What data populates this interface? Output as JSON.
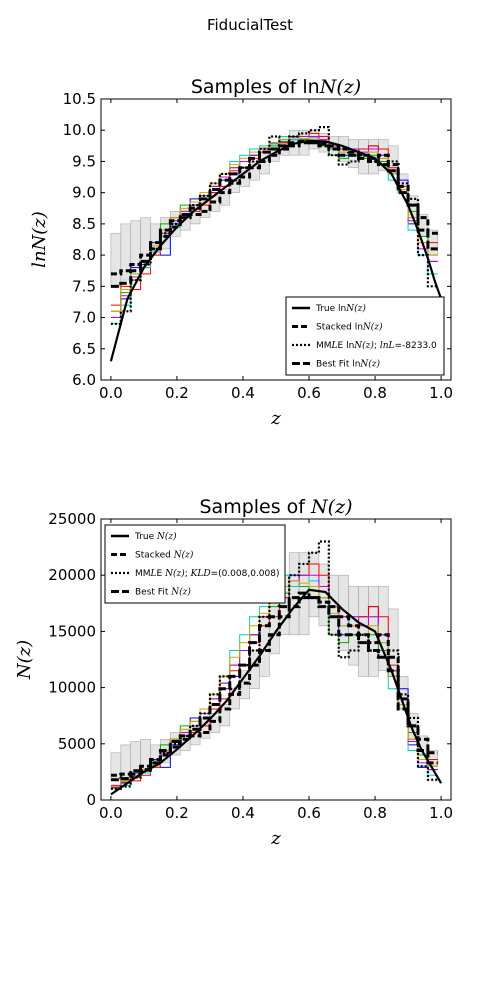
{
  "suptitle": "FiducialTest",
  "chart_data": [
    {
      "type": "line",
      "title": "Samples of lnN(z)",
      "xlabel": "z",
      "ylabel": "lnN(z)",
      "xlim": [
        -0.03,
        1.03
      ],
      "ylim": [
        6.0,
        10.5
      ],
      "xticks": [
        "0.0",
        "0.2",
        "0.4",
        "0.6",
        "0.8",
        "1.0"
      ],
      "yticks": [
        "6.0",
        "6.5",
        "7.0",
        "7.5",
        "8.0",
        "8.5",
        "9.0",
        "9.5",
        "10.0",
        "10.5"
      ],
      "legend_position": "lower-right",
      "legend": [
        "True lnN(z)",
        "Stacked lnN(z)",
        "MMLE lnN(z); lnL=-8233.0",
        "Best Fit lnN(z)"
      ],
      "bin_edges": [
        0.0,
        0.03,
        0.06,
        0.09,
        0.12,
        0.15,
        0.18,
        0.21,
        0.24,
        0.27,
        0.3,
        0.33,
        0.36,
        0.39,
        0.42,
        0.45,
        0.48,
        0.51,
        0.54,
        0.57,
        0.6,
        0.63,
        0.66,
        0.69,
        0.72,
        0.75,
        0.78,
        0.81,
        0.84,
        0.87,
        0.9,
        0.93,
        0.96,
        0.99
      ],
      "band_low": [
        7.5,
        7.6,
        7.8,
        7.9,
        8.0,
        8.1,
        8.3,
        8.4,
        8.5,
        8.6,
        8.7,
        8.8,
        9.0,
        9.1,
        9.2,
        9.3,
        9.5,
        9.6,
        9.6,
        9.6,
        9.7,
        9.65,
        9.6,
        9.5,
        9.4,
        9.3,
        9.3,
        9.35,
        9.3,
        9.0,
        8.6,
        8.3,
        8.0
      ],
      "band_high": [
        8.35,
        8.5,
        8.55,
        8.6,
        8.5,
        8.6,
        8.7,
        8.75,
        8.8,
        8.9,
        8.95,
        9.05,
        9.2,
        9.35,
        9.5,
        9.7,
        9.8,
        9.9,
        10.0,
        10.0,
        10.0,
        9.95,
        9.9,
        9.9,
        9.85,
        9.85,
        9.85,
        9.85,
        9.75,
        9.3,
        8.95,
        8.65,
        8.4
      ],
      "truth": {
        "name": "True lnN(z)",
        "x": [
          0.0,
          0.05,
          0.1,
          0.15,
          0.2,
          0.25,
          0.3,
          0.35,
          0.4,
          0.45,
          0.5,
          0.55,
          0.6,
          0.65,
          0.7,
          0.75,
          0.8,
          0.85,
          0.9,
          0.93,
          0.96,
          0.98,
          1.0
        ],
        "y": [
          6.3,
          7.3,
          7.8,
          8.15,
          8.45,
          8.7,
          8.9,
          9.1,
          9.3,
          9.5,
          9.65,
          9.78,
          9.83,
          9.82,
          9.75,
          9.65,
          9.55,
          9.3,
          8.8,
          8.4,
          7.95,
          7.6,
          7.3
        ]
      },
      "steps": [
        {
          "name": "Stacked lnN(z)",
          "values": [
            7.7,
            7.75,
            7.85,
            8.0,
            8.1,
            8.3,
            8.45,
            8.6,
            8.65,
            8.7,
            8.85,
            9.0,
            9.15,
            9.25,
            9.4,
            9.5,
            9.6,
            9.7,
            9.75,
            9.8,
            9.8,
            9.78,
            9.75,
            9.7,
            9.65,
            9.6,
            9.55,
            9.6,
            9.45,
            9.1,
            8.8,
            8.6,
            8.35
          ]
        },
        {
          "name": "MMLE lnN(z); lnL=-8233.0",
          "values": [
            6.9,
            7.1,
            7.6,
            7.85,
            8.1,
            8.35,
            8.5,
            8.65,
            8.8,
            8.95,
            9.15,
            9.3,
            9.2,
            9.4,
            9.5,
            9.7,
            9.9,
            9.75,
            9.9,
            9.95,
            10.0,
            10.05,
            9.6,
            9.45,
            9.5,
            9.6,
            9.5,
            9.45,
            9.5,
            9.15,
            8.9,
            8.0,
            7.5
          ]
        },
        {
          "name": "Best Fit lnN(z)",
          "values": [
            7.5,
            7.55,
            7.75,
            7.9,
            8.2,
            8.4,
            8.55,
            8.65,
            8.75,
            8.9,
            9.05,
            9.2,
            9.3,
            9.4,
            9.55,
            9.65,
            9.7,
            9.75,
            9.8,
            9.82,
            9.8,
            9.75,
            9.7,
            9.6,
            9.6,
            9.55,
            9.5,
            9.45,
            9.35,
            9.0,
            8.8,
            8.4,
            8.1
          ]
        }
      ],
      "samples": [
        {
          "color": "#0000ff",
          "values": [
            7.0,
            7.3,
            7.8,
            7.9,
            8.2,
            8.0,
            8.5,
            8.6,
            8.9,
            8.9,
            9.0,
            9.2,
            9.3,
            9.4,
            9.6,
            9.7,
            9.8,
            9.8,
            9.9,
            9.85,
            9.85,
            9.8,
            9.7,
            9.6,
            9.6,
            9.7,
            9.75,
            9.6,
            9.3,
            9.2,
            8.5,
            8.0,
            7.9
          ]
        },
        {
          "color": "#ff0000",
          "values": [
            7.2,
            7.5,
            7.45,
            7.7,
            8.0,
            8.3,
            8.6,
            8.65,
            8.7,
            8.8,
            9.0,
            9.1,
            9.35,
            9.4,
            9.55,
            9.65,
            9.7,
            9.8,
            9.85,
            9.9,
            9.95,
            9.9,
            9.75,
            9.7,
            9.65,
            9.7,
            9.75,
            9.7,
            9.4,
            9.1,
            8.6,
            8.2,
            8.2
          ]
        },
        {
          "color": "#00aa00",
          "values": [
            7.1,
            7.4,
            7.6,
            7.8,
            8.1,
            8.5,
            8.6,
            8.8,
            8.85,
            8.95,
            9.1,
            9.25,
            9.4,
            9.5,
            9.6,
            9.7,
            9.75,
            9.82,
            9.85,
            9.85,
            9.8,
            9.75,
            9.6,
            9.55,
            9.6,
            9.55,
            9.6,
            9.5,
            9.35,
            9.0,
            8.7,
            8.3,
            8.0
          ]
        },
        {
          "color": "#00cccc",
          "values": [
            6.9,
            7.2,
            7.7,
            7.8,
            8.05,
            8.3,
            8.45,
            8.6,
            8.8,
            8.9,
            9.1,
            9.3,
            9.5,
            9.6,
            9.7,
            9.75,
            9.78,
            9.9,
            9.85,
            9.9,
            9.88,
            9.8,
            9.7,
            9.65,
            9.7,
            9.6,
            9.7,
            9.55,
            9.2,
            9.0,
            8.4,
            8.0,
            7.7
          ]
        },
        {
          "color": "#cc00cc",
          "values": [
            7.0,
            7.35,
            7.65,
            7.85,
            8.1,
            8.35,
            8.55,
            8.7,
            8.8,
            8.95,
            9.1,
            9.25,
            9.4,
            9.5,
            9.6,
            9.7,
            9.8,
            9.85,
            9.88,
            9.9,
            9.9,
            9.85,
            9.75,
            9.7,
            9.7,
            9.65,
            9.7,
            9.6,
            9.35,
            9.05,
            8.55,
            8.1,
            7.9
          ]
        },
        {
          "color": "#ccaa00",
          "values": [
            7.1,
            7.45,
            7.7,
            7.9,
            8.15,
            8.4,
            8.6,
            8.75,
            8.85,
            9.0,
            9.15,
            9.3,
            9.45,
            9.55,
            9.65,
            9.72,
            9.8,
            9.85,
            9.88,
            9.87,
            9.85,
            9.8,
            9.72,
            9.65,
            9.65,
            9.6,
            9.65,
            9.55,
            9.3,
            9.05,
            8.6,
            8.2,
            8.0
          ]
        }
      ]
    },
    {
      "type": "line",
      "title": "Samples of N(z)",
      "xlabel": "z",
      "ylabel": "N(z)",
      "xlim": [
        -0.03,
        1.03
      ],
      "ylim": [
        0,
        25000
      ],
      "xticks": [
        "0.0",
        "0.2",
        "0.4",
        "0.6",
        "0.8",
        "1.0"
      ],
      "yticks": [
        "0",
        "5000",
        "10000",
        "15000",
        "20000",
        "25000"
      ],
      "legend_position": "upper-left",
      "legend": [
        "True N(z)",
        "Stacked N(z)",
        "MMLE N(z); KLD=(0.008,0.008)",
        "Best Fit N(z)"
      ],
      "bin_edges": [
        0.0,
        0.03,
        0.06,
        0.09,
        0.12,
        0.15,
        0.18,
        0.21,
        0.24,
        0.27,
        0.3,
        0.33,
        0.36,
        0.39,
        0.42,
        0.45,
        0.48,
        0.51,
        0.54,
        0.57,
        0.6,
        0.63,
        0.66,
        0.69,
        0.72,
        0.75,
        0.78,
        0.81,
        0.84,
        0.87,
        0.9,
        0.93,
        0.96,
        0.99
      ],
      "band_low": [
        1800,
        2000,
        2400,
        2600,
        3000,
        3300,
        4000,
        4400,
        4900,
        5500,
        6000,
        6600,
        8100,
        9000,
        9900,
        11000,
        13000,
        14700,
        14700,
        14700,
        16300,
        15500,
        14700,
        13300,
        12000,
        11000,
        11000,
        11500,
        11000,
        8100,
        5400,
        4000,
        3000
      ],
      "band_high": [
        4200,
        4900,
        5200,
        5400,
        4900,
        5400,
        6000,
        6300,
        6600,
        7300,
        7700,
        8500,
        9900,
        11500,
        13300,
        16300,
        18000,
        20000,
        22000,
        22000,
        22000,
        21000,
        20000,
        20000,
        19000,
        19000,
        19000,
        19000,
        17000,
        11000,
        7700,
        5700,
        4400
      ],
      "truth": {
        "name": "True N(z)",
        "x": [
          0.0,
          0.05,
          0.1,
          0.15,
          0.2,
          0.25,
          0.3,
          0.35,
          0.4,
          0.45,
          0.5,
          0.55,
          0.6,
          0.65,
          0.7,
          0.75,
          0.8,
          0.85,
          0.88,
          0.91,
          0.94,
          0.97,
          1.0
        ],
        "y": [
          500,
          1500,
          2500,
          3300,
          4500,
          5800,
          7200,
          8800,
          10800,
          12800,
          15000,
          17000,
          18700,
          18500,
          17000,
          15800,
          15000,
          11500,
          9000,
          6500,
          4500,
          3000,
          1500
        ]
      },
      "steps": [
        {
          "name": "Stacked N(z)",
          "values": [
            2200,
            2300,
            2600,
            3000,
            3300,
            4000,
            4700,
            5400,
            5700,
            6000,
            7000,
            8100,
            9400,
            10400,
            12000,
            13300,
            14700,
            16300,
            17200,
            18000,
            18000,
            17600,
            17200,
            16300,
            15500,
            14700,
            14000,
            14700,
            12700,
            9000,
            6600,
            5400,
            4200
          ]
        },
        {
          "name": "MMLE N(z); KLD=(0.008,0.008)",
          "values": [
            1000,
            1200,
            2000,
            2600,
            3300,
            4200,
            5000,
            5700,
            6600,
            7700,
            9400,
            11000,
            9900,
            12000,
            13300,
            16300,
            20000,
            17200,
            20000,
            21000,
            22000,
            23000,
            14700,
            12700,
            13300,
            14700,
            13300,
            12700,
            13300,
            9400,
            7300,
            3000,
            1800
          ]
        },
        {
          "name": "Best Fit N(z)",
          "values": [
            1800,
            1900,
            2300,
            2700,
            3600,
            4400,
            5200,
            5700,
            6300,
            7300,
            8500,
            9900,
            11000,
            12000,
            14000,
            15500,
            16300,
            17200,
            18000,
            18400,
            18000,
            17200,
            16300,
            14700,
            14700,
            14000,
            13300,
            12700,
            11500,
            8100,
            6600,
            4400,
            3300
          ]
        }
      ],
      "samples": [
        {
          "color": "#0000ff",
          "values": [
            1100,
            1500,
            2400,
            2700,
            3600,
            2900,
            4900,
            5400,
            7300,
            7300,
            8100,
            9900,
            11000,
            12000,
            14700,
            16300,
            18000,
            18000,
            20000,
            19000,
            19000,
            18000,
            16300,
            14700,
            14700,
            16300,
            17200,
            14700,
            11000,
            9900,
            4900,
            2900,
            2700
          ]
        },
        {
          "color": "#ff0000",
          "values": [
            1300,
            1800,
            1700,
            2200,
            2900,
            4000,
            5400,
            5700,
            6000,
            6600,
            8100,
            9000,
            11500,
            12000,
            14000,
            15500,
            16300,
            18000,
            19000,
            20000,
            21000,
            20000,
            17200,
            16300,
            15500,
            16300,
            17200,
            16300,
            12000,
            9000,
            5400,
            3600,
            3600
          ]
        },
        {
          "color": "#00aa00",
          "values": [
            1200,
            1600,
            2000,
            2400,
            3300,
            4900,
            5400,
            6600,
            7000,
            7700,
            9000,
            10400,
            12000,
            13300,
            14700,
            16300,
            17200,
            18400,
            19000,
            19000,
            18000,
            17200,
            14700,
            14000,
            14700,
            14000,
            14700,
            13300,
            11500,
            8100,
            6000,
            4000,
            3000
          ]
        },
        {
          "color": "#00cccc",
          "values": [
            1000,
            1300,
            2200,
            2400,
            3100,
            4000,
            4700,
            5400,
            6600,
            7300,
            9000,
            11000,
            13300,
            14700,
            16300,
            17200,
            17600,
            20000,
            19000,
            20000,
            19500,
            18000,
            16300,
            15500,
            16300,
            14700,
            16300,
            14000,
            9900,
            8100,
            4400,
            3000,
            2200
          ]
        },
        {
          "color": "#cc00cc",
          "values": [
            1100,
            1550,
            2100,
            2550,
            3300,
            4200,
            5200,
            6000,
            6600,
            7700,
            9000,
            10400,
            12000,
            13300,
            14700,
            16300,
            18000,
            19000,
            19500,
            20000,
            20000,
            19000,
            17200,
            16300,
            16300,
            15500,
            16300,
            14700,
            11500,
            8500,
            5200,
            3300,
            2700
          ]
        },
        {
          "color": "#ccaa00",
          "values": [
            1200,
            1700,
            2200,
            2700,
            3500,
            4400,
            5400,
            6300,
            7000,
            8100,
            9400,
            11000,
            12700,
            14000,
            15500,
            16600,
            18000,
            19000,
            19500,
            19300,
            19000,
            18000,
            16600,
            15500,
            15500,
            14700,
            15500,
            14000,
            11000,
            8500,
            5400,
            3600,
            3000
          ]
        }
      ]
    }
  ]
}
